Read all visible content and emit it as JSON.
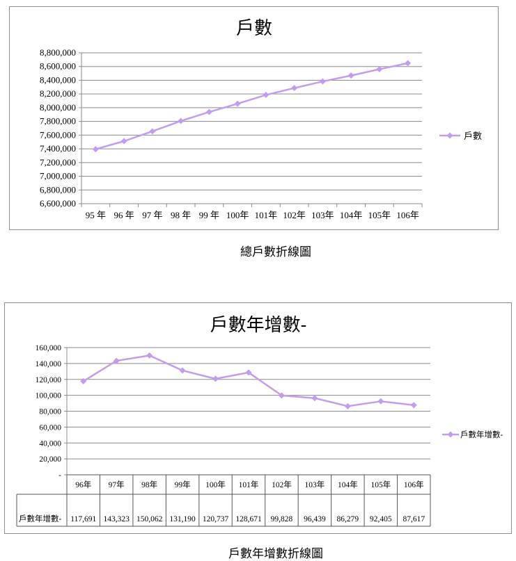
{
  "chart_data": [
    {
      "type": "line",
      "title": "戶數",
      "categories": [
        "95 年",
        "96 年",
        "97 年",
        "98 年",
        "99 年",
        "100年",
        "101年",
        "102年",
        "103年",
        "104年",
        "105年",
        "106年"
      ],
      "series": [
        {
          "name": "戶數",
          "values": [
            7394757,
            7512449,
            7655772,
            7805834,
            7937024,
            8057761,
            8186432,
            8286260,
            8382699,
            8468978,
            8561383,
            8649000
          ]
        }
      ],
      "ylim": [
        6600000,
        8800000
      ],
      "yticks": [
        6600000,
        6800000,
        7000000,
        7200000,
        7400000,
        7600000,
        7800000,
        8000000,
        8200000,
        8400000,
        8600000,
        8800000
      ],
      "ytick_labels": [
        "6,600,000",
        "6,800,000",
        "7,000,000",
        "7,200,000",
        "7,400,000",
        "7,600,000",
        "7,800,000",
        "8,000,000",
        "8,200,000",
        "8,400,000",
        "8,600,000",
        "8,800,000"
      ],
      "grid": true,
      "legend": "right",
      "color": "#c39bf0"
    },
    {
      "type": "line",
      "title": "戶數年增數-",
      "categories": [
        "96年",
        "97年",
        "98年",
        "99年",
        "100年",
        "101年",
        "102年",
        "103年",
        "104年",
        "105年",
        "106年"
      ],
      "series": [
        {
          "name": "戶數年增數-",
          "values": [
            117691,
            143323,
            150062,
            131190,
            120737,
            128671,
            99828,
            96439,
            86279,
            92405,
            87617
          ]
        }
      ],
      "value_labels": [
        "117,691",
        "143,323",
        "150,062",
        "131,190",
        "120,737",
        "128,671",
        "99,828",
        "96,439",
        "86,279",
        "92,405",
        "87,617"
      ],
      "ylim": [
        0,
        160000
      ],
      "yticks": [
        0,
        20000,
        40000,
        60000,
        80000,
        100000,
        120000,
        140000,
        160000
      ],
      "ytick_labels": [
        "-",
        "20,000",
        "40,000",
        "60,000",
        "80,000",
        "100,000",
        "120,000",
        "140,000",
        "160,000"
      ],
      "grid": true,
      "legend": "right",
      "data_table": true,
      "color": "#c39bf0"
    }
  ],
  "captions": [
    "總戶數折線圖",
    "戶數年增數折線圖"
  ]
}
